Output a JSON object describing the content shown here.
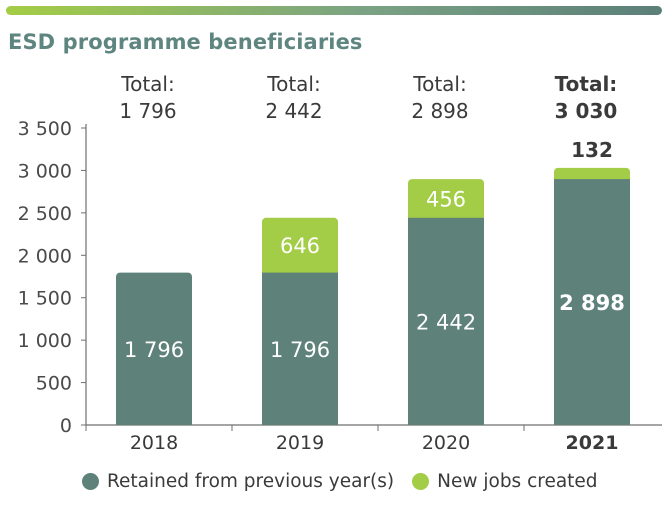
{
  "chart_data": {
    "type": "bar",
    "stacked": true,
    "title": "ESD programme beneficiaries",
    "categories": [
      "2018",
      "2019",
      "2020",
      "2021"
    ],
    "highlight_category": "2021",
    "series": [
      {
        "name": "Retained from previous year(s)",
        "values": [
          1796,
          1796,
          2442,
          2898
        ],
        "labels": [
          "1 796",
          "1 796",
          "2 442",
          "2 898"
        ],
        "color": "#5e8279"
      },
      {
        "name": "New jobs created",
        "values": [
          0,
          646,
          456,
          132
        ],
        "labels": [
          "",
          "646",
          "456",
          "132"
        ],
        "color": "#a3cd46"
      }
    ],
    "totals": [
      {
        "label": "Total:",
        "value": "1 796"
      },
      {
        "label": "Total:",
        "value": "2 442"
      },
      {
        "label": "Total:",
        "value": "2 898"
      },
      {
        "label": "Total:",
        "value": "3 030"
      }
    ],
    "ylim": [
      0,
      3500
    ],
    "yticks": [
      0,
      500,
      1000,
      1500,
      2000,
      2500,
      3000,
      3500
    ],
    "ytick_labels": [
      "0",
      "500",
      "1 000",
      "1 500",
      "2 000",
      "2 500",
      "3 000",
      "3 500"
    ],
    "xlabel": "",
    "ylabel": "",
    "grid": false,
    "legend": "bottom"
  }
}
